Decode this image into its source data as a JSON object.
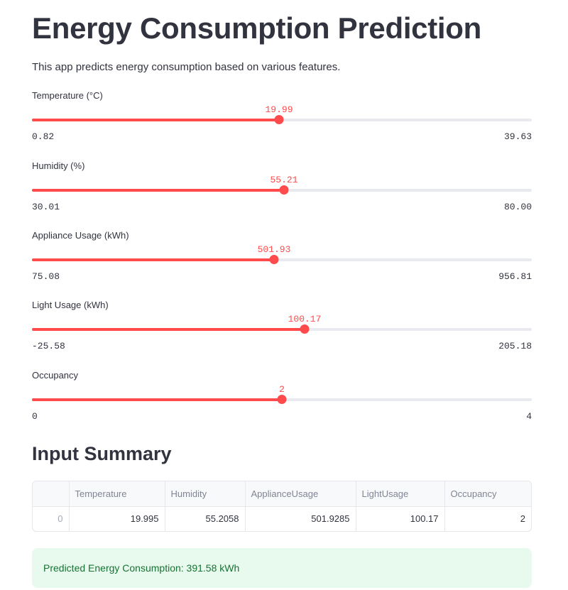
{
  "header": {
    "title": "Energy Consumption Prediction",
    "description": "This app predicts energy consumption based on various features."
  },
  "sliders": [
    {
      "label": "Temperature (°C)",
      "value": "19.99",
      "min": "0.82",
      "max": "39.63",
      "fraction": 0.494
    },
    {
      "label": "Humidity (%)",
      "value": "55.21",
      "min": "30.01",
      "max": "80.00",
      "fraction": 0.504
    },
    {
      "label": "Appliance Usage (kWh)",
      "value": "501.93",
      "min": "75.08",
      "max": "956.81",
      "fraction": 0.484
    },
    {
      "label": "Light Usage (kWh)",
      "value": "100.17",
      "min": "-25.58",
      "max": "205.18",
      "fraction": 0.545
    },
    {
      "label": "Occupancy",
      "value": "2",
      "min": "0",
      "max": "4",
      "fraction": 0.5
    }
  ],
  "summary": {
    "title": "Input Summary",
    "columns": [
      "",
      "Temperature",
      "Humidity",
      "ApplianceUsage",
      "LightUsage",
      "Occupancy"
    ],
    "rows": [
      [
        "0",
        "19.995",
        "55.2058",
        "501.9285",
        "100.17",
        "2"
      ]
    ]
  },
  "result": {
    "text": "Predicted Energy Consumption: 391.58 kWh"
  },
  "colors": {
    "accent": "#ff4b4b",
    "track": "#e9eaef",
    "success_bg": "#e8f9ee",
    "success_text": "#177233"
  }
}
